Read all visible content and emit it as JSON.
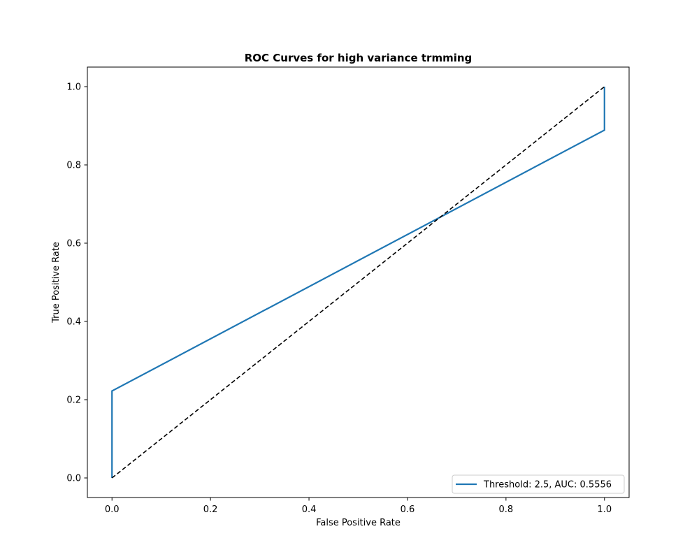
{
  "chart_data": {
    "type": "line",
    "title": "ROC Curves for high variance trmming",
    "xlabel": "False Positive Rate",
    "ylabel": "True Positive Rate",
    "xlim": [
      -0.05,
      1.05
    ],
    "ylim": [
      -0.05,
      1.05
    ],
    "xticks": [
      0.0,
      0.2,
      0.4,
      0.6,
      0.8,
      1.0
    ],
    "yticks": [
      0.0,
      0.2,
      0.4,
      0.6,
      0.8,
      1.0
    ],
    "xtick_labels": [
      "0.0",
      "0.2",
      "0.4",
      "0.6",
      "0.8",
      "1.0"
    ],
    "ytick_labels": [
      "0.0",
      "0.2",
      "0.4",
      "0.6",
      "0.8",
      "1.0"
    ],
    "grid": false,
    "legend_position": "lower-right",
    "series": [
      {
        "name": "Threshold: 2.5, AUC: 0.5556",
        "color": "#1f77b4",
        "style": "solid",
        "x": [
          0.0,
          0.0,
          1.0,
          1.0
        ],
        "y": [
          0.0,
          0.2222,
          0.8889,
          1.0
        ]
      },
      {
        "color": "#000000",
        "style": "dashed",
        "x": [
          0.0,
          1.0
        ],
        "y": [
          0.0,
          1.0
        ]
      }
    ]
  }
}
